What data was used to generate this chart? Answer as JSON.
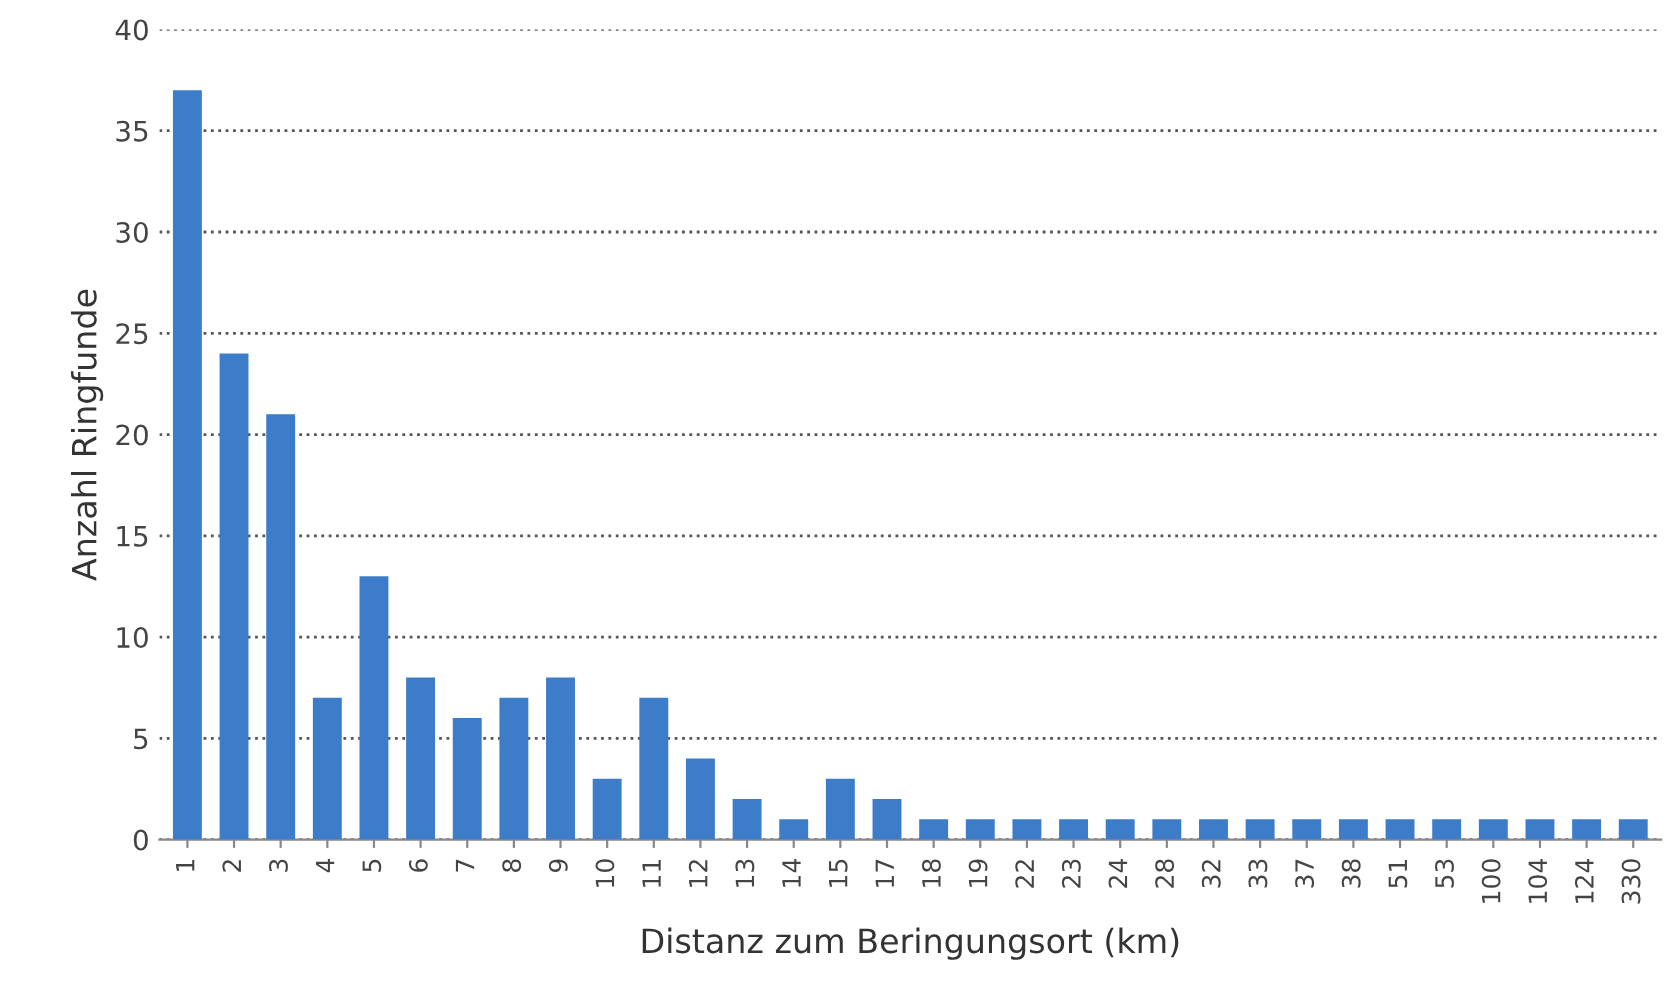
{
  "chart_data": {
    "type": "bar",
    "xlabel": "Distanz zum Beringungsort (km)",
    "ylabel": "Anzahl Ringfunde",
    "categories": [
      "1",
      "2",
      "3",
      "4",
      "5",
      "6",
      "7",
      "8",
      "9",
      "10",
      "11",
      "12",
      "13",
      "14",
      "15",
      "17",
      "18",
      "19",
      "22",
      "23",
      "24",
      "28",
      "32",
      "33",
      "37",
      "38",
      "51",
      "53",
      "100",
      "104",
      "124",
      "330"
    ],
    "values": [
      37,
      24,
      21,
      7,
      13,
      8,
      6,
      7,
      8,
      3,
      7,
      4,
      2,
      1,
      3,
      2,
      1,
      1,
      1,
      1,
      1,
      1,
      1,
      1,
      1,
      1,
      1,
      1,
      1,
      1,
      1,
      1
    ],
    "color": "#3d7cc9",
    "ylim": [
      0,
      40
    ],
    "yticks": [
      0,
      5,
      10,
      15,
      20,
      25,
      30,
      35,
      40
    ],
    "grid": "y",
    "legend": false
  }
}
